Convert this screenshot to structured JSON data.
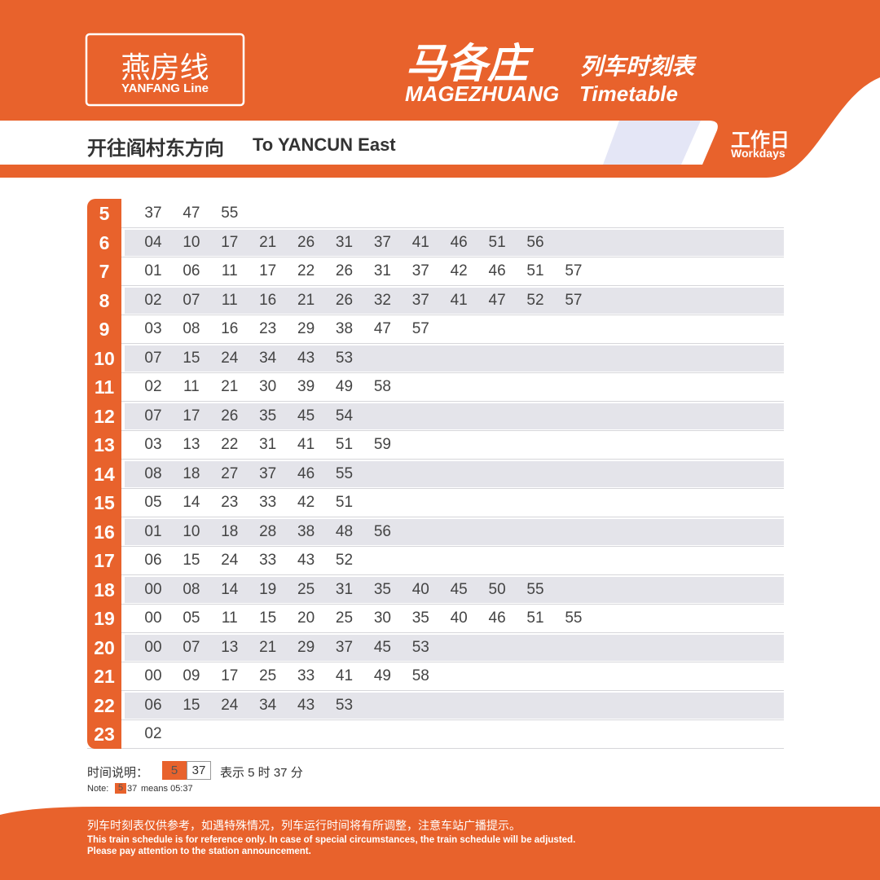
{
  "header": {
    "line_cn": "燕房线",
    "line_en": "YANFANG Line",
    "station_cn": "马各庄",
    "station_en": "MAGEZHUANG",
    "title_cn": "列车时刻表",
    "title_en": "Timetable",
    "direction_cn": "开往阎村东方向",
    "direction_en": "To YANCUN East",
    "day_cn": "工作日",
    "day_en": "Workdays"
  },
  "table": {
    "rows": [
      {
        "hour": "5",
        "minutes": [
          "37",
          "47",
          "55"
        ]
      },
      {
        "hour": "6",
        "minutes": [
          "04",
          "10",
          "17",
          "21",
          "26",
          "31",
          "37",
          "41",
          "46",
          "51",
          "56"
        ]
      },
      {
        "hour": "7",
        "minutes": [
          "01",
          "06",
          "11",
          "17",
          "22",
          "26",
          "31",
          "37",
          "42",
          "46",
          "51",
          "57"
        ]
      },
      {
        "hour": "8",
        "minutes": [
          "02",
          "07",
          "11",
          "16",
          "21",
          "26",
          "32",
          "37",
          "41",
          "47",
          "52",
          "57"
        ]
      },
      {
        "hour": "9",
        "minutes": [
          "03",
          "08",
          "16",
          "23",
          "29",
          "38",
          "47",
          "57"
        ]
      },
      {
        "hour": "10",
        "minutes": [
          "07",
          "15",
          "24",
          "34",
          "43",
          "53"
        ]
      },
      {
        "hour": "11",
        "minutes": [
          "02",
          "11",
          "21",
          "30",
          "39",
          "49",
          "58"
        ]
      },
      {
        "hour": "12",
        "minutes": [
          "07",
          "17",
          "26",
          "35",
          "45",
          "54"
        ]
      },
      {
        "hour": "13",
        "minutes": [
          "03",
          "13",
          "22",
          "31",
          "41",
          "51",
          "59"
        ]
      },
      {
        "hour": "14",
        "minutes": [
          "08",
          "18",
          "27",
          "37",
          "46",
          "55"
        ]
      },
      {
        "hour": "15",
        "minutes": [
          "05",
          "14",
          "23",
          "33",
          "42",
          "51"
        ]
      },
      {
        "hour": "16",
        "minutes": [
          "01",
          "10",
          "18",
          "28",
          "38",
          "48",
          "56"
        ]
      },
      {
        "hour": "17",
        "minutes": [
          "06",
          "15",
          "24",
          "33",
          "43",
          "52"
        ]
      },
      {
        "hour": "18",
        "minutes": [
          "00",
          "08",
          "14",
          "19",
          "25",
          "31",
          "35",
          "40",
          "45",
          "50",
          "55"
        ]
      },
      {
        "hour": "19",
        "minutes": [
          "00",
          "05",
          "11",
          "15",
          "20",
          "25",
          "30",
          "35",
          "40",
          "46",
          "51",
          "55"
        ]
      },
      {
        "hour": "20",
        "minutes": [
          "00",
          "07",
          "13",
          "21",
          "29",
          "37",
          "45",
          "53"
        ]
      },
      {
        "hour": "21",
        "minutes": [
          "00",
          "09",
          "17",
          "25",
          "33",
          "41",
          "49",
          "58"
        ]
      },
      {
        "hour": "22",
        "minutes": [
          "06",
          "15",
          "24",
          "34",
          "43",
          "53"
        ]
      },
      {
        "hour": "23",
        "minutes": [
          "02"
        ]
      }
    ]
  },
  "legend": {
    "label": "时间说明：",
    "example_hour": "5",
    "example_minute": "37",
    "description": "表示 5 时 37 分",
    "note_label": "Note:",
    "note_text": "means 05:37"
  },
  "footer": {
    "cn": "列车时刻表仅供参考，如遇特殊情况，列车运行时间将有所调整，注意车站广播提示。",
    "en_1": "This train schedule is for reference only. In case of special circumstances, the train schedule will be adjusted.",
    "en_2": "Please pay attention to the station announcement."
  }
}
